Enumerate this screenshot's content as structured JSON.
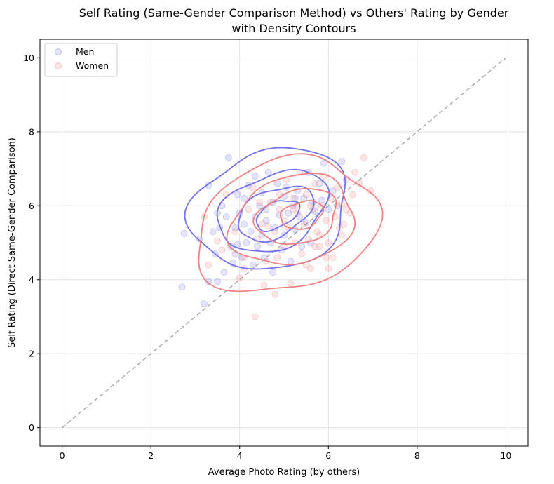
{
  "chart_data": {
    "type": "scatter",
    "title_line1": "Self Rating (Same-Gender Comparison Method) vs Others' Rating by Gender",
    "title_line2": "with Density Contours",
    "xlabel": "Average Photo Rating (by others)",
    "ylabel": "Self Rating (Direct Same-Gender Comparison)",
    "xlim": [
      -0.5,
      10.5
    ],
    "ylim": [
      -0.5,
      10.5
    ],
    "xticks": [
      "0",
      "2",
      "4",
      "6",
      "8",
      "10"
    ],
    "yticks": [
      "0",
      "2",
      "4",
      "6",
      "8",
      "10"
    ],
    "grid": true,
    "legend_position": "top-left",
    "reference_line": {
      "from": [
        0,
        0
      ],
      "to": [
        10,
        10
      ],
      "style": "dashed",
      "color": "#aaaaaa"
    },
    "series": [
      {
        "name": "Men",
        "color": "#6b6bf0",
        "points": [
          [
            2.7,
            3.8
          ],
          [
            2.75,
            5.25
          ],
          [
            3.1,
            5.1
          ],
          [
            3.2,
            3.35
          ],
          [
            3.3,
            6.55
          ],
          [
            3.3,
            3.95
          ],
          [
            3.4,
            5.3
          ],
          [
            3.45,
            4.7
          ],
          [
            3.5,
            5.8
          ],
          [
            3.5,
            3.95
          ],
          [
            3.55,
            5.4
          ],
          [
            3.6,
            6.0
          ],
          [
            3.65,
            4.2
          ],
          [
            3.7,
            5.7
          ],
          [
            3.75,
            7.3
          ],
          [
            3.8,
            4.9
          ],
          [
            3.85,
            4.45
          ],
          [
            3.9,
            5.4
          ],
          [
            3.95,
            6.3
          ],
          [
            3.95,
            4.95
          ],
          [
            4.0,
            5.8
          ],
          [
            4.05,
            4.6
          ],
          [
            4.1,
            6.2
          ],
          [
            4.15,
            5.0
          ],
          [
            4.2,
            6.55
          ],
          [
            4.25,
            5.3
          ],
          [
            4.3,
            4.4
          ],
          [
            4.35,
            6.8
          ],
          [
            4.35,
            5.7
          ],
          [
            4.4,
            4.9
          ],
          [
            4.45,
            6.0
          ],
          [
            4.5,
            5.2
          ],
          [
            4.5,
            6.35
          ],
          [
            4.55,
            4.6
          ],
          [
            4.6,
            5.6
          ],
          [
            4.65,
            6.9
          ],
          [
            4.7,
            5.0
          ],
          [
            4.75,
            6.1
          ],
          [
            4.75,
            4.2
          ],
          [
            4.8,
            5.4
          ],
          [
            4.85,
            6.6
          ],
          [
            4.9,
            5.75
          ],
          [
            4.95,
            4.8
          ],
          [
            5.0,
            6.25
          ],
          [
            5.0,
            5.2
          ],
          [
            5.05,
            6.5
          ],
          [
            5.1,
            5.8
          ],
          [
            5.15,
            4.5
          ],
          [
            5.2,
            6.0
          ],
          [
            5.25,
            5.35
          ],
          [
            5.3,
            6.4
          ],
          [
            5.35,
            5.7
          ],
          [
            5.4,
            4.9
          ],
          [
            5.45,
            6.2
          ],
          [
            5.5,
            5.55
          ],
          [
            5.55,
            6.9
          ],
          [
            5.6,
            5.0
          ],
          [
            5.65,
            6.1
          ],
          [
            5.7,
            5.85
          ],
          [
            5.8,
            6.6
          ],
          [
            5.85,
            6.15
          ],
          [
            5.9,
            7.15
          ],
          [
            6.0,
            5.9
          ],
          [
            6.1,
            6.4
          ],
          [
            6.2,
            6.0
          ],
          [
            6.3,
            7.2
          ],
          [
            4.1,
            5.5
          ],
          [
            4.6,
            5.9
          ],
          [
            5.25,
            6.2
          ],
          [
            3.9,
            4.7
          ]
        ]
      },
      {
        "name": "Women",
        "color": "#f07b7b",
        "points": [
          [
            3.2,
            5.7
          ],
          [
            3.3,
            4.4
          ],
          [
            3.6,
            4.8
          ],
          [
            3.7,
            6.3
          ],
          [
            3.9,
            5.3
          ],
          [
            4.0,
            4.05
          ],
          [
            4.1,
            4.6
          ],
          [
            4.2,
            5.9
          ],
          [
            4.3,
            6.5
          ],
          [
            4.4,
            5.1
          ],
          [
            4.5,
            5.5
          ],
          [
            4.55,
            3.85
          ],
          [
            4.6,
            4.5
          ],
          [
            4.7,
            6.1
          ],
          [
            4.8,
            5.3
          ],
          [
            4.85,
            4.6
          ],
          [
            4.9,
            5.9
          ],
          [
            5.0,
            4.9
          ],
          [
            5.05,
            6.7
          ],
          [
            5.1,
            5.4
          ],
          [
            5.15,
            3.9
          ],
          [
            5.2,
            6.2
          ],
          [
            5.25,
            5.0
          ],
          [
            5.3,
            5.8
          ],
          [
            5.35,
            6.9
          ],
          [
            5.4,
            4.7
          ],
          [
            5.45,
            5.5
          ],
          [
            5.5,
            6.3
          ],
          [
            5.55,
            5.1
          ],
          [
            5.6,
            4.3
          ],
          [
            5.65,
            5.9
          ],
          [
            5.7,
            6.6
          ],
          [
            5.75,
            5.3
          ],
          [
            5.8,
            4.9
          ],
          [
            5.85,
            6.0
          ],
          [
            5.9,
            6.8
          ],
          [
            5.95,
            5.6
          ],
          [
            6.0,
            5.0
          ],
          [
            6.05,
            6.2
          ],
          [
            6.1,
            4.6
          ],
          [
            6.15,
            5.7
          ],
          [
            6.2,
            6.5
          ],
          [
            6.25,
            5.4
          ],
          [
            6.3,
            6.05
          ],
          [
            6.35,
            5.5
          ],
          [
            6.4,
            6.7
          ],
          [
            6.5,
            5.8
          ],
          [
            6.6,
            6.9
          ],
          [
            6.7,
            6.6
          ],
          [
            6.8,
            7.3
          ],
          [
            6.95,
            6.4
          ],
          [
            4.8,
            3.6
          ],
          [
            5.5,
            4.4
          ],
          [
            4.35,
            3.0
          ],
          [
            6.0,
            4.3
          ],
          [
            6.3,
            5.2
          ],
          [
            5.0,
            5.6
          ],
          [
            5.3,
            6.0
          ],
          [
            4.65,
            5.45
          ],
          [
            5.8,
            5.2
          ],
          [
            6.4,
            5.9
          ],
          [
            4.45,
            6.1
          ],
          [
            5.6,
            6.0
          ],
          [
            5.2,
            5.9
          ],
          [
            4.9,
            6.3
          ],
          [
            5.7,
            4.9
          ],
          [
            4.1,
            4.3
          ],
          [
            3.5,
            5.05
          ],
          [
            6.55,
            6.3
          ],
          [
            5.95,
            4.6
          ]
        ]
      }
    ],
    "contours": [
      {
        "series": "Men",
        "level": 1,
        "center": [
          4.7,
          5.9
        ],
        "rx": 1.85,
        "ry": 1.55,
        "rotation_deg": 32
      },
      {
        "series": "Men",
        "level": 2,
        "center": [
          4.75,
          5.85
        ],
        "rx": 1.35,
        "ry": 0.95,
        "rotation_deg": 35
      },
      {
        "series": "Men",
        "level": 3,
        "center": [
          4.8,
          5.8
        ],
        "rx": 0.95,
        "ry": 0.6,
        "rotation_deg": 35
      },
      {
        "series": "Men",
        "level": 4,
        "center": [
          4.85,
          5.75
        ],
        "rx": 0.55,
        "ry": 0.32,
        "rotation_deg": 35
      },
      {
        "series": "Women",
        "level": 1,
        "center": [
          5.05,
          5.45
        ],
        "rx": 2.15,
        "ry": 1.7,
        "rotation_deg": 30
      },
      {
        "series": "Women",
        "level": 2,
        "center": [
          5.2,
          5.6
        ],
        "rx": 1.45,
        "ry": 1.15,
        "rotation_deg": 28
      },
      {
        "series": "Women",
        "level": 3,
        "center": [
          5.3,
          5.7
        ],
        "rx": 0.95,
        "ry": 0.7,
        "rotation_deg": 25
      },
      {
        "series": "Women",
        "level": 4,
        "center": [
          5.4,
          5.75
        ],
        "rx": 0.5,
        "ry": 0.35,
        "rotation_deg": 25
      }
    ]
  }
}
